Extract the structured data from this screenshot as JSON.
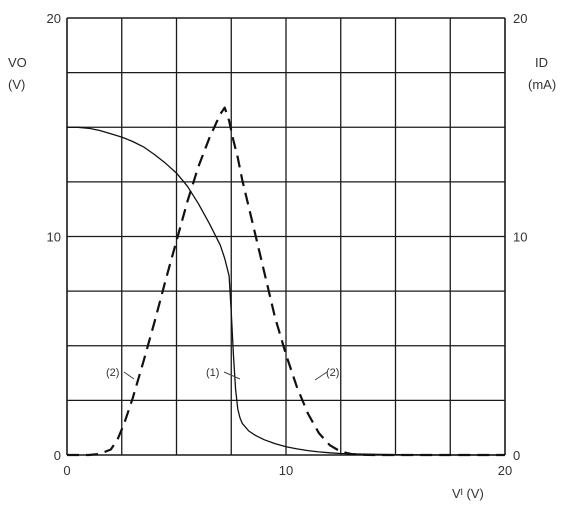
{
  "chart_data": {
    "type": "line",
    "x_label": "Vᴵ (V)",
    "x_ticks": [
      "0",
      "10",
      "20"
    ],
    "x_range": [
      0,
      20
    ],
    "left_axis": {
      "label_line1": "VO",
      "label_line2": "(V)",
      "ticks": [
        "0",
        "10",
        "20"
      ],
      "range": [
        0,
        20
      ]
    },
    "right_axis": {
      "label_line1": "ID",
      "label_line2": "(mA)",
      "ticks": [
        "0",
        "10",
        "20"
      ],
      "range": [
        0,
        20
      ]
    },
    "grid": true,
    "grid_divisions": {
      "x": 8,
      "y": 8
    },
    "series": [
      {
        "name": "(1)",
        "axis": "left",
        "style": "solid",
        "x": [
          0,
          0.5,
          1,
          1.5,
          2,
          2.5,
          3,
          3.5,
          4,
          4.5,
          5,
          5.5,
          6,
          6.5,
          7,
          7.2,
          7.4,
          7.5,
          7.6,
          7.7,
          7.8,
          7.9,
          8,
          8.3,
          8.6,
          9,
          9.5,
          10,
          10.5,
          11,
          11.5,
          12,
          12.5,
          13,
          14,
          15,
          16,
          17,
          18,
          19,
          20
        ],
        "y": [
          15.0,
          15.0,
          14.95,
          14.85,
          14.7,
          14.55,
          14.35,
          14.1,
          13.75,
          13.35,
          12.9,
          12.3,
          11.5,
          10.6,
          9.6,
          9.0,
          8.2,
          6.5,
          4.6,
          3.0,
          2.1,
          1.7,
          1.45,
          1.1,
          0.9,
          0.7,
          0.52,
          0.38,
          0.28,
          0.2,
          0.14,
          0.1,
          0.07,
          0.05,
          0.03,
          0.02,
          0.01,
          0,
          0,
          0,
          0
        ]
      },
      {
        "name": "(2)",
        "axis": "right",
        "style": "dashed",
        "x": [
          0,
          1,
          1.5,
          2,
          2.3,
          2.6,
          3,
          3.5,
          4,
          4.5,
          5,
          5.5,
          6,
          6.5,
          7,
          7.2,
          7.4,
          7.6,
          7.8,
          8,
          8.5,
          9,
          9.5,
          10,
          10.5,
          11,
          11.5,
          12,
          12.5,
          13,
          13.5,
          14,
          20
        ],
        "y": [
          0,
          0,
          0.05,
          0.25,
          0.7,
          1.4,
          2.6,
          4.3,
          6.1,
          8.0,
          9.8,
          11.6,
          13.2,
          14.5,
          15.6,
          15.9,
          15.3,
          14.4,
          13.6,
          12.6,
          10.5,
          8.4,
          6.3,
          4.6,
          3.1,
          1.9,
          1.0,
          0.45,
          0.15,
          0.04,
          0.01,
          0,
          0
        ]
      }
    ],
    "annotations": [
      "(2)",
      "(1)",
      "(2)"
    ]
  }
}
